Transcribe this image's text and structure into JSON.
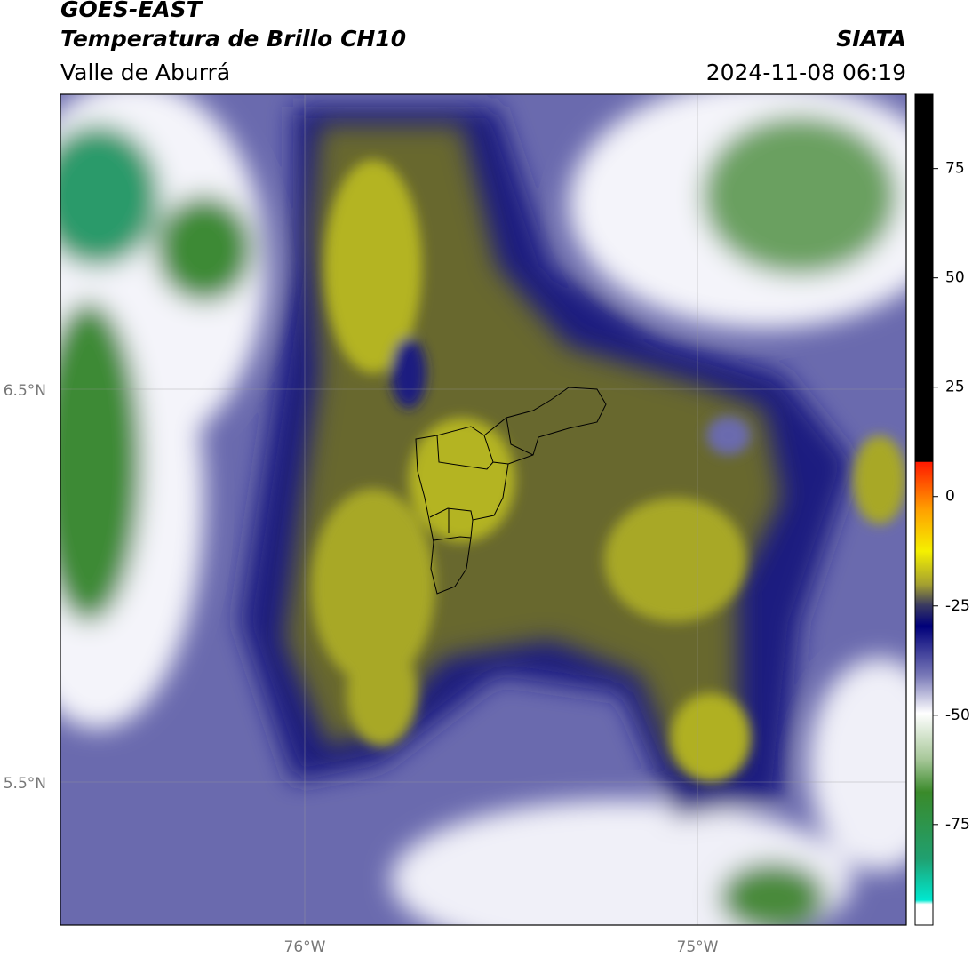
{
  "header": {
    "title": "GOES-EAST",
    "subtitle": "Temperatura de Brillo CH10",
    "region": "Valle de Aburrá",
    "source": "SIATA",
    "datetime": "2024-11-08 06:19"
  },
  "map": {
    "lat_labels": [
      "6.5°N",
      "5.5°N"
    ],
    "lon_labels": [
      "76°W",
      "75°W"
    ]
  },
  "colorbar": {
    "lim": [
      -98,
      92
    ],
    "ticks": [
      75,
      50,
      25,
      0,
      -25,
      -50,
      -75
    ]
  }
}
